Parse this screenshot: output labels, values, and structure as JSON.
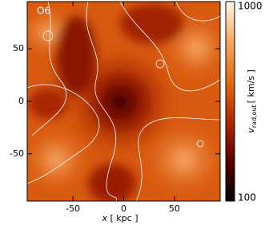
{
  "chart_data": {
    "type": "heatmap",
    "title": "O6",
    "xlabel": {
      "symbol": "x",
      "unit": "[ kpc ]"
    },
    "xlim": [
      -95,
      95
    ],
    "xticks": [
      -50,
      0,
      50
    ],
    "ylim": [
      -95,
      95
    ],
    "yticks": [
      -50,
      0,
      50
    ],
    "colorbar": {
      "label": {
        "symbol": "v",
        "subscript": "rad,out",
        "unit": "[ km/s ]"
      },
      "lim": [
        100,
        1000
      ],
      "ticks": [
        100,
        1000
      ],
      "log": true,
      "colors": [
        "#000000",
        "#5a0000",
        "#b02800",
        "#e36a10",
        "#f6a860",
        "#fff8ec"
      ]
    }
  }
}
